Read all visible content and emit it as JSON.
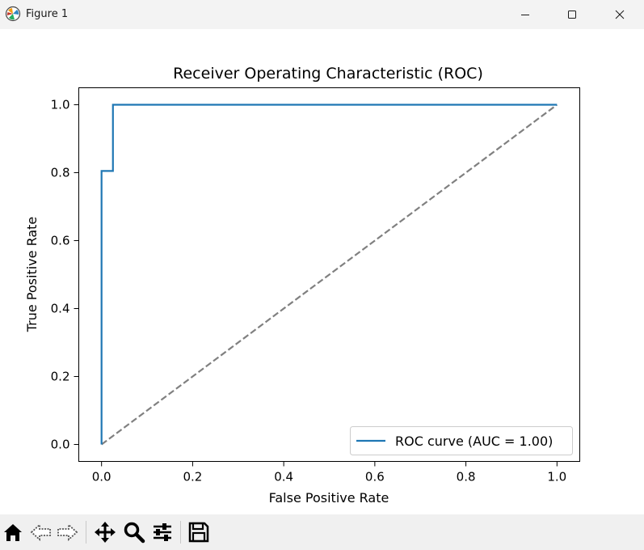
{
  "window": {
    "title": "Figure 1",
    "icons": [
      "matplotlib-icon",
      "minimize-icon",
      "maximize-icon",
      "close-icon"
    ]
  },
  "toolbar": {
    "tools": [
      "home-icon",
      "back-icon",
      "forward-icon",
      "pan-icon",
      "zoom-icon",
      "configure-subplots-icon",
      "save-icon"
    ]
  },
  "chart_data": {
    "type": "line",
    "title": "Receiver Operating Characteristic (ROC)",
    "xlabel": "False Positive Rate",
    "ylabel": "True Positive Rate",
    "xlim": [
      -0.05,
      1.05
    ],
    "ylim": [
      -0.05,
      1.05
    ],
    "xticks": [
      0.0,
      0.2,
      0.4,
      0.6,
      0.8,
      1.0
    ],
    "xtick_labels": [
      "0.0",
      "0.2",
      "0.4",
      "0.6",
      "0.8",
      "1.0"
    ],
    "yticks": [
      0.0,
      0.2,
      0.4,
      0.6,
      0.8,
      1.0
    ],
    "ytick_labels": [
      "0.0",
      "0.2",
      "0.4",
      "0.6",
      "0.8",
      "1.0"
    ],
    "grid": false,
    "legend_position": "lower-right",
    "series": [
      {
        "name": "ROC curve (AUC = 1.00)",
        "color": "#1f77b4",
        "style": "solid",
        "x": [
          0.0,
          0.0,
          0.0,
          0.025,
          0.025,
          1.0
        ],
        "y": [
          0.0,
          0.8,
          0.805,
          0.805,
          1.0,
          1.0
        ]
      },
      {
        "color": "#808080",
        "style": "dashed",
        "x": [
          0.0,
          1.0
        ],
        "y": [
          0.0,
          1.0
        ]
      }
    ]
  }
}
